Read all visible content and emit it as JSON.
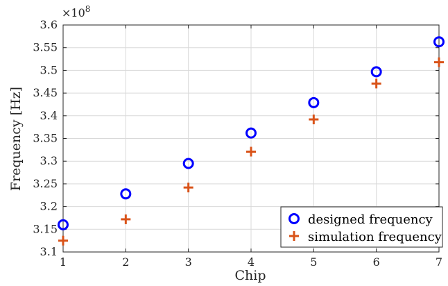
{
  "chart_data": {
    "type": "scatter",
    "xlabel": "Chip",
    "ylabel": "Frequency [Hz]",
    "exponent_label": "×10",
    "exponent_power": "8",
    "xlim": [
      1,
      7
    ],
    "ylim": [
      3.1,
      3.6
    ],
    "x_ticks": [
      1,
      2,
      3,
      4,
      5,
      6,
      7
    ],
    "y_ticks": [
      3.1,
      3.15,
      3.2,
      3.25,
      3.3,
      3.35,
      3.4,
      3.45,
      3.5,
      3.55,
      3.6
    ],
    "y_tick_labels": [
      "3.1",
      "3.15",
      "3.2",
      "3.25",
      "3.3",
      "3.35",
      "3.4",
      "3.45",
      "3.5",
      "3.55",
      "3.6"
    ],
    "grid": true,
    "legend_position": "bottom-right",
    "series": [
      {
        "name": "designed frequency",
        "marker": "circle",
        "color": "#0000ff",
        "x": [
          1,
          2,
          3,
          4,
          5,
          6,
          7
        ],
        "y": [
          3.16,
          3.228,
          3.295,
          3.362,
          3.429,
          3.497,
          3.563
        ]
      },
      {
        "name": "simulation frequency",
        "marker": "plus",
        "color": "#d95319",
        "x": [
          1,
          2,
          3,
          4,
          5,
          6,
          7
        ],
        "y": [
          3.125,
          3.172,
          3.242,
          3.321,
          3.392,
          3.471,
          3.518
        ]
      }
    ]
  }
}
